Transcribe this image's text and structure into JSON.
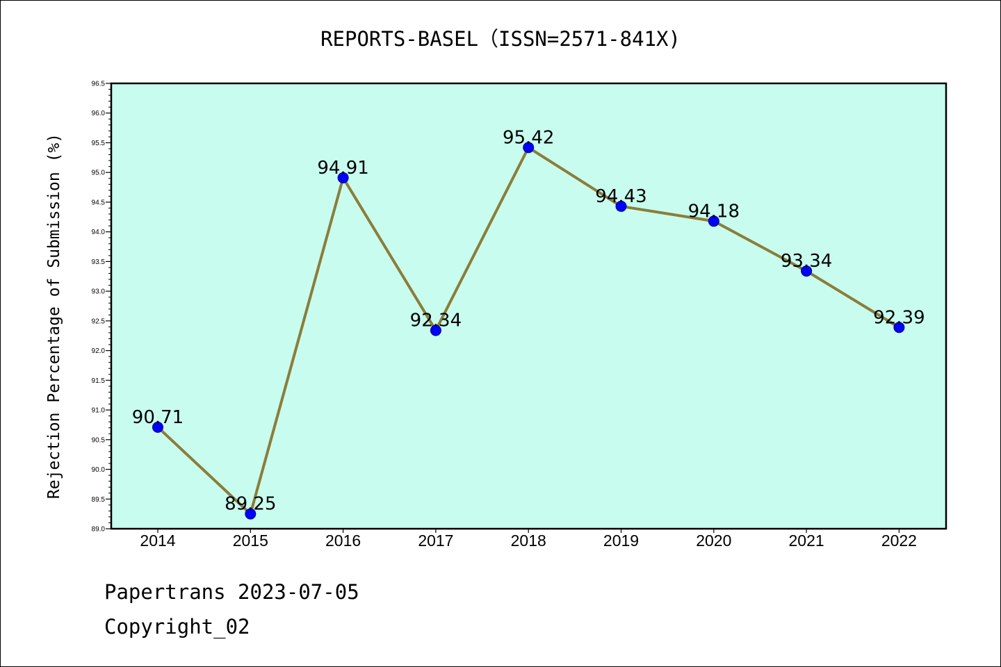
{
  "chart_data": {
    "type": "line",
    "title": "REPORTS-BASEL（ISSN=2571-841X)",
    "xlabel": "",
    "ylabel": "Rejection Percentage of Submission (%)",
    "categories": [
      "2014",
      "2015",
      "2016",
      "2017",
      "2018",
      "2019",
      "2020",
      "2021",
      "2022"
    ],
    "values": [
      90.71,
      89.25,
      94.91,
      92.34,
      95.42,
      94.43,
      94.18,
      93.34,
      92.39
    ],
    "data_labels": [
      "90.71",
      "89.25",
      "94.91",
      "92.34",
      "95.42",
      "94.43",
      "94.18",
      "93.34",
      "92.39"
    ],
    "ylim": [
      89.0,
      96.5
    ],
    "yticks": [
      "89.0",
      "89.5",
      "90.0",
      "90.5",
      "91.0",
      "91.5",
      "92.0",
      "92.5",
      "93.0",
      "93.5",
      "94.0",
      "94.5",
      "95.0",
      "95.5",
      "96.0",
      "96.5"
    ],
    "grid": false,
    "legend": "none",
    "colors": {
      "plot_background": "#c8fcee",
      "line": "#8b7d3a",
      "marker": "#0000ff"
    }
  },
  "footer": {
    "line1": "Papertrans 2023-07-05",
    "line2": "Copyright_02"
  }
}
